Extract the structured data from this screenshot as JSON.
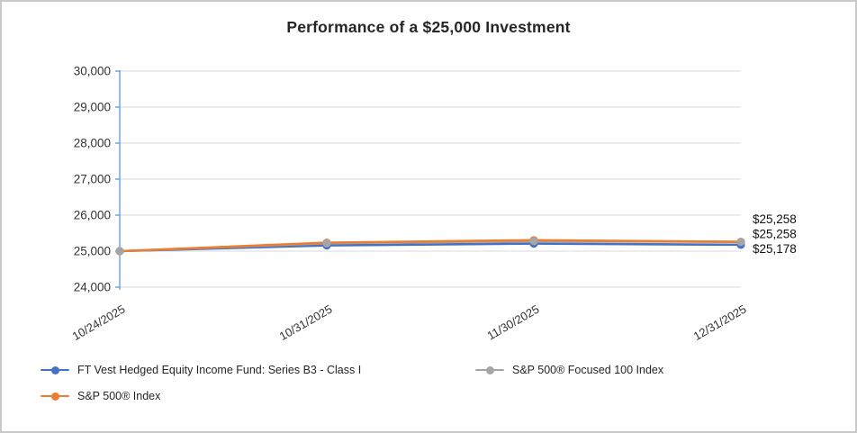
{
  "title": "Performance of a $25,000 Investment",
  "colors": {
    "fund_blue": "#4472C4",
    "sp500_orange": "#ED7D31",
    "focused_gray": "#A5A5A5",
    "axis_line": "#5B9BD5",
    "gridline": "#D9D9D9",
    "title_text": "#262626",
    "tick_text": "#333333",
    "end_label_text": "#111111",
    "border": "#C9C9C9"
  },
  "chart_data": {
    "type": "line",
    "title": "Performance of a $25,000 Investment",
    "categories": [
      "10/24/2025",
      "10/31/2025",
      "11/30/2025",
      "12/31/2025"
    ],
    "series": [
      {
        "name": "FT Vest Hedged Equity Income Fund: Series B3 - Class I",
        "color": "#4472C4",
        "values": [
          25000,
          25160,
          25210,
          25178
        ]
      },
      {
        "name": "S&P 500® Focused 100 Index",
        "color": "#A5A5A5",
        "values": [
          25000,
          25220,
          25280,
          25258
        ]
      },
      {
        "name": "S&P 500® Index",
        "color": "#ED7D31",
        "values": [
          25000,
          25235,
          25305,
          25258
        ]
      }
    ],
    "y_ticks": [
      "24,000",
      "25,000",
      "26,000",
      "27,000",
      "28,000",
      "29,000",
      "30,000"
    ],
    "ylim": [
      24000,
      30000
    ],
    "grid": true,
    "legend_position": "bottom",
    "end_labels": [
      "$25,258",
      "$25,258",
      "$25,178"
    ]
  },
  "legend": {
    "items": [
      {
        "label": "FT Vest Hedged Equity Income Fund: Series B3 - Class I",
        "color": "#4472C4"
      },
      {
        "label": "S&P 500® Focused 100 Index",
        "color": "#A5A5A5"
      },
      {
        "label": "S&P 500® Index",
        "color": "#ED7D31"
      }
    ]
  }
}
